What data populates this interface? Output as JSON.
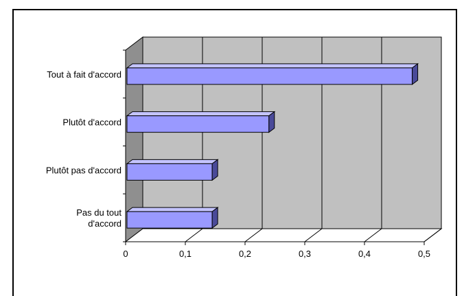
{
  "chart_data": {
    "type": "bar",
    "orientation": "horizontal",
    "style": "3d",
    "title": "",
    "xlabel": "",
    "ylabel": "",
    "categories": [
      [
        "Tout à fait d'accord"
      ],
      [
        "Plutôt d'accord"
      ],
      [
        "Plutôt pas d'accord"
      ],
      [
        "Pas du tout",
        "d'accord"
      ]
    ],
    "values": [
      0.48,
      0.24,
      0.145,
      0.145
    ],
    "xlim": [
      0,
      0.5
    ],
    "xticks": [
      "0",
      "0,1",
      "0,2",
      "0,3",
      "0,4",
      "0,5"
    ],
    "grid": true,
    "legend": "none",
    "colors": {
      "bar_front": "#9999ff",
      "bar_top": "#c4c4ff",
      "bar_side": "#4a4a99",
      "wall": "#c0c0c0",
      "side_wall": "#8f8f8f",
      "gridline": "#000000"
    }
  }
}
